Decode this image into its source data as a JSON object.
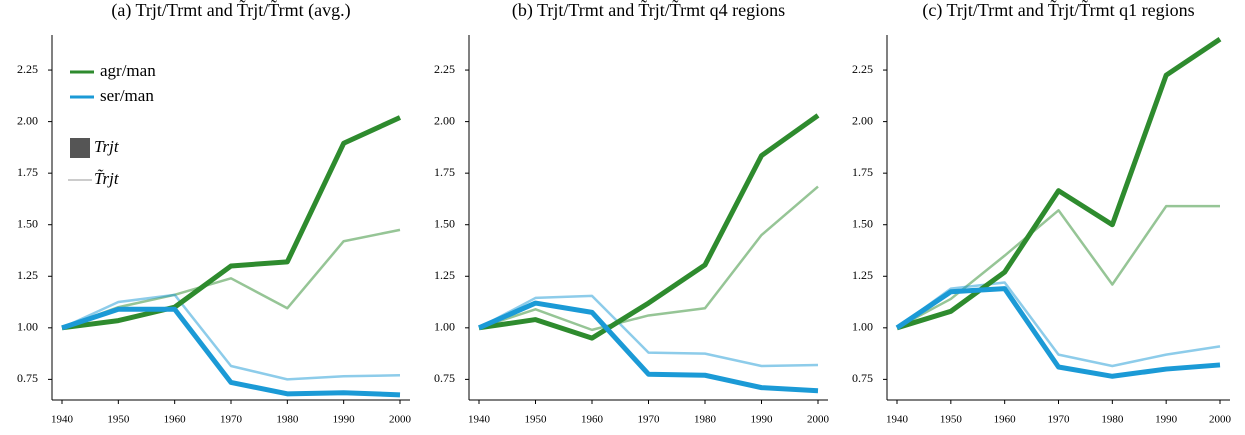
{
  "chart_data": [
    {
      "type": "line",
      "title": "(a) Trjt/Trmt and T̃rjt/T̃rmt (avg.)",
      "x": [
        1940,
        1950,
        1960,
        1970,
        1980,
        1990,
        2000
      ],
      "xlim": [
        1940,
        2000
      ],
      "xticks": [
        1940,
        1950,
        1960,
        1970,
        1980,
        1990,
        2000
      ],
      "ylim": [
        0.65,
        2.42
      ],
      "yticks": [
        0.75,
        {
          "value": 1,
          "label": "1.00"
        },
        1.25,
        {
          "value": 1.5,
          "label": "1.50"
        },
        1.75,
        {
          "value": 2,
          "label": "2.00"
        },
        2.25
      ],
      "series": [
        {
          "name": "agr/man",
          "color": "#2e8b2e",
          "values": [
            1.0,
            1.035,
            1.1,
            1.3,
            1.32,
            1.895,
            2.02
          ],
          "values_tilde": [
            1.0,
            1.1,
            1.16,
            1.24,
            1.095,
            1.42,
            1.475
          ]
        },
        {
          "name": "ser/man",
          "color": "#1b9ad6",
          "values": [
            1.0,
            1.09,
            1.09,
            0.735,
            0.68,
            0.685,
            0.675
          ],
          "values_tilde": [
            1.0,
            1.125,
            1.16,
            0.815,
            0.75,
            0.765,
            0.77
          ]
        }
      ],
      "line_styles": [
        {
          "name": "Trjt",
          "color": "#555555"
        },
        {
          "name": "T̃rjt",
          "color": "#cccccc"
        }
      ]
    },
    {
      "type": "line",
      "title": "(b) Trjt/Trmt and T̃rjt/T̃rmt q4 regions",
      "x": [
        1940,
        1950,
        1960,
        1970,
        1980,
        1990,
        2000
      ],
      "xlim": [
        1940,
        2000
      ],
      "xticks": [
        1940,
        1950,
        1960,
        1970,
        1980,
        1990,
        2000
      ],
      "ylim": [
        0.65,
        2.42
      ],
      "yticks": [
        0.75,
        {
          "value": 1,
          "label": "1.00"
        },
        1.25,
        {
          "value": 1.5,
          "label": "1.50"
        },
        1.75,
        {
          "value": 2,
          "label": "2.00"
        },
        2.25
      ],
      "series": [
        {
          "color": "#2e8b2e",
          "values": [
            1.0,
            1.04,
            0.95,
            1.12,
            1.305,
            1.835,
            2.03
          ],
          "values_tilde": [
            1.0,
            1.09,
            0.99,
            1.06,
            1.095,
            1.45,
            1.685
          ]
        },
        {
          "color": "#1b9ad6",
          "values": [
            1.0,
            1.12,
            1.075,
            0.775,
            0.77,
            0.71,
            0.695
          ],
          "values_tilde": [
            1.0,
            1.145,
            1.155,
            0.88,
            0.875,
            0.815,
            0.82
          ]
        }
      ]
    },
    {
      "type": "line",
      "title": "(c) Trjt/Trmt and T̃rjt/T̃rmt q1 regions",
      "x": [
        1940,
        1950,
        1960,
        1970,
        1980,
        1990,
        2000
      ],
      "xlim": [
        1940,
        2000
      ],
      "xticks": [
        1940,
        1950,
        1960,
        1970,
        1980,
        1990,
        2000
      ],
      "ylim": [
        0.65,
        2.42
      ],
      "yticks": [
        0.75,
        {
          "value": 1,
          "label": "1.00"
        },
        1.25,
        {
          "value": 1.5,
          "label": "1.50"
        },
        1.75,
        {
          "value": 2,
          "label": "2.00"
        },
        2.25
      ],
      "series": [
        {
          "color": "#2e8b2e",
          "values": [
            1.0,
            1.08,
            1.27,
            1.665,
            1.5,
            2.225,
            2.4
          ],
          "values_tilde": [
            1.0,
            1.14,
            1.35,
            1.57,
            1.21,
            1.59,
            1.59
          ]
        },
        {
          "color": "#1b9ad6",
          "values": [
            1.0,
            1.175,
            1.19,
            0.81,
            0.765,
            0.8,
            0.82
          ],
          "values_tilde": [
            1.0,
            1.19,
            1.22,
            0.87,
            0.815,
            0.87,
            0.91
          ]
        }
      ]
    }
  ]
}
